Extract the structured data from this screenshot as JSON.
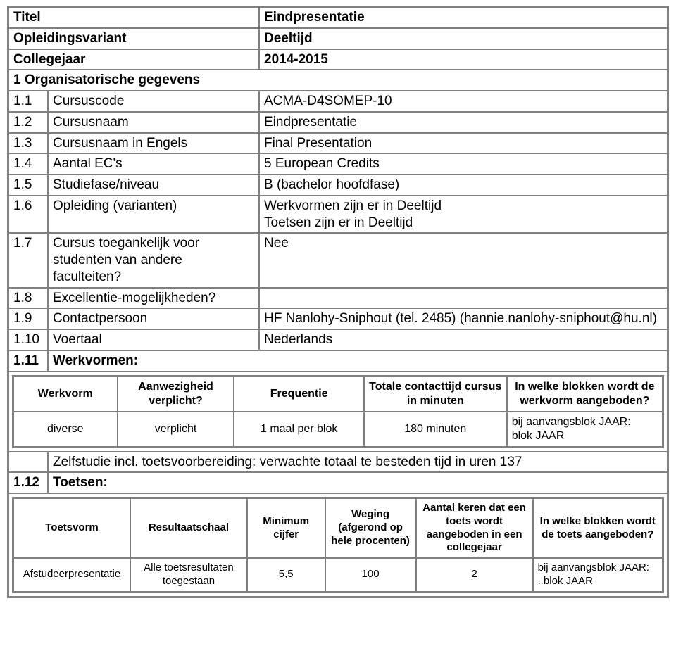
{
  "colors": {
    "border": "#808080",
    "text": "#000000",
    "background": "#ffffff"
  },
  "header": {
    "title_label": "Titel",
    "title_value": "Eindpresentatie",
    "variant_label": "Opleidingsvariant",
    "variant_value": "Deeltijd",
    "year_label": "Collegejaar",
    "year_value": "2014-2015"
  },
  "section1": {
    "heading": "1 Organisatorische gegevens",
    "rows": [
      {
        "num": "1.1",
        "label": "Cursuscode",
        "value": "ACMA-D4SOMEP-10"
      },
      {
        "num": "1.2",
        "label": "Cursusnaam",
        "value": "Eindpresentatie"
      },
      {
        "num": "1.3",
        "label": "Cursusnaam in Engels",
        "value": "Final Presentation"
      },
      {
        "num": "1.4",
        "label": "Aantal EC's",
        "value": "5 European Credits"
      },
      {
        "num": "1.5",
        "label": "Studiefase/niveau",
        "value": "B (bachelor hoofdfase)"
      },
      {
        "num": "1.6",
        "label": "Opleiding (varianten)",
        "value": "Werkvormen zijn er in Deeltijd\nToetsen zijn er in Deeltijd"
      },
      {
        "num": "1.7",
        "label": "Cursus toegankelijk voor studenten van andere faculteiten?",
        "value": "Nee"
      },
      {
        "num": "1.8",
        "label": "Excellentie-mogelijkheden?",
        "value": ""
      },
      {
        "num": "1.9",
        "label": "Contactpersoon",
        "value": "HF Nanlohy-Sniphout (tel. 2485) (hannie.nanlohy-sniphout@hu.nl)"
      },
      {
        "num": "1.10",
        "label": "Voertaal",
        "value": "Nederlands"
      }
    ],
    "werkvormen": {
      "num": "1.11",
      "label": "Werkvormen:",
      "headers": [
        "Werkvorm",
        "Aanwezigheid verplicht?",
        "Frequentie",
        "Totale contacttijd cursus in minuten",
        "In welke blokken wordt de werkvorm aangeboden?"
      ],
      "row": [
        "diverse",
        "verplicht",
        "1 maal per blok",
        "180 minuten",
        "bij aanvangsblok JAAR:\nblok JAAR"
      ],
      "note": "Zelfstudie incl. toetsvoorbereiding: verwachte totaal te besteden tijd in uren 137"
    },
    "toetsen": {
      "num": "1.12",
      "label": "Toetsen:",
      "headers": [
        "Toetsvorm",
        "Resultaatschaal",
        "Minimum cijfer",
        "Weging (afgerond op hele procenten)",
        "Aantal keren dat een toets wordt aangeboden in een collegejaar",
        "In welke blokken wordt de toets aangeboden?"
      ],
      "row": [
        "Afstudeerpresentatie",
        "Alle toetsresultaten toegestaan",
        "5,5",
        "100",
        "2",
        "bij aanvangsblok JAAR:\n. blok JAAR"
      ]
    }
  }
}
